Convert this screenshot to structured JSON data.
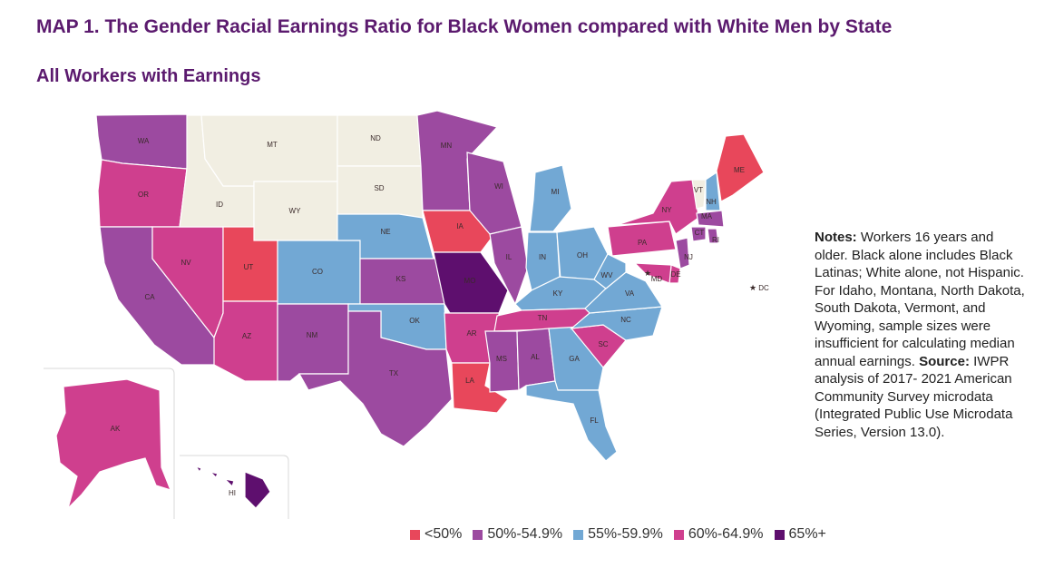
{
  "title": "MAP 1. The Gender Racial Earnings Ratio for Black Women compared with White Men by State",
  "subtitle": "All Workers with Earnings",
  "colors": {
    "lt50": "#e8475b",
    "r50_54": "#9c4aa0",
    "r55_59": "#72a8d4",
    "r60_64": "#cf3f8e",
    "r65plus": "#5e0f6e",
    "insufficient": "#f1eee2"
  },
  "legend": [
    {
      "key": "lt50",
      "label": "<50%"
    },
    {
      "key": "r50_54",
      "label": "50%-54.9%"
    },
    {
      "key": "r55_59",
      "label": "55%-59.9%"
    },
    {
      "key": "r60_64",
      "label": "60%-64.9%"
    },
    {
      "key": "r65plus",
      "label": "65%+"
    }
  ],
  "notes": {
    "notes_label": "Notes:",
    "notes_text": " Workers 16 years and older. Black alone includes Black Latinas; White alone, not Hispanic.  For Idaho, Montana, North Dakota, South Dakota, Vermont, and Wyoming, sample sizes were insufficient for calculating median annual earnings.",
    "source_label": "Source:",
    "source_text": " IWPR analysis of 2017- 2021 American Community Survey microdata (Integrated Public Use Microdata Series, Version 13.0)."
  },
  "states": [
    {
      "abbr": "WA",
      "cat": "r50_54"
    },
    {
      "abbr": "OR",
      "cat": "r60_64"
    },
    {
      "abbr": "CA",
      "cat": "r50_54"
    },
    {
      "abbr": "NV",
      "cat": "r60_64"
    },
    {
      "abbr": "ID",
      "cat": "insufficient"
    },
    {
      "abbr": "MT",
      "cat": "insufficient"
    },
    {
      "abbr": "WY",
      "cat": "insufficient"
    },
    {
      "abbr": "UT",
      "cat": "lt50"
    },
    {
      "abbr": "AZ",
      "cat": "r60_64"
    },
    {
      "abbr": "CO",
      "cat": "r55_59"
    },
    {
      "abbr": "NM",
      "cat": "r50_54"
    },
    {
      "abbr": "ND",
      "cat": "insufficient"
    },
    {
      "abbr": "SD",
      "cat": "insufficient"
    },
    {
      "abbr": "NE",
      "cat": "r55_59"
    },
    {
      "abbr": "KS",
      "cat": "r50_54"
    },
    {
      "abbr": "OK",
      "cat": "r55_59"
    },
    {
      "abbr": "TX",
      "cat": "r50_54"
    },
    {
      "abbr": "MN",
      "cat": "r50_54"
    },
    {
      "abbr": "IA",
      "cat": "lt50"
    },
    {
      "abbr": "MO",
      "cat": "r65plus"
    },
    {
      "abbr": "AR",
      "cat": "r60_64"
    },
    {
      "abbr": "LA",
      "cat": "lt50"
    },
    {
      "abbr": "WI",
      "cat": "r50_54"
    },
    {
      "abbr": "IL",
      "cat": "r50_54"
    },
    {
      "abbr": "MI",
      "cat": "r55_59"
    },
    {
      "abbr": "IN",
      "cat": "r55_59"
    },
    {
      "abbr": "OH",
      "cat": "r55_59"
    },
    {
      "abbr": "KY",
      "cat": "r55_59"
    },
    {
      "abbr": "TN",
      "cat": "r60_64"
    },
    {
      "abbr": "MS",
      "cat": "r50_54"
    },
    {
      "abbr": "AL",
      "cat": "r50_54"
    },
    {
      "abbr": "GA",
      "cat": "r55_59"
    },
    {
      "abbr": "FL",
      "cat": "r55_59"
    },
    {
      "abbr": "SC",
      "cat": "r60_64"
    },
    {
      "abbr": "NC",
      "cat": "r55_59"
    },
    {
      "abbr": "VA",
      "cat": "r55_59"
    },
    {
      "abbr": "WV",
      "cat": "r55_59"
    },
    {
      "abbr": "PA",
      "cat": "r60_64"
    },
    {
      "abbr": "NY",
      "cat": "r60_64"
    },
    {
      "abbr": "VT",
      "cat": "insufficient"
    },
    {
      "abbr": "NH",
      "cat": "r55_59"
    },
    {
      "abbr": "ME",
      "cat": "lt50"
    },
    {
      "abbr": "MA",
      "cat": "r50_54"
    },
    {
      "abbr": "CT",
      "cat": "r50_54"
    },
    {
      "abbr": "RI",
      "cat": "r50_54"
    },
    {
      "abbr": "NJ",
      "cat": "r50_54"
    },
    {
      "abbr": "DE",
      "cat": "r60_64"
    },
    {
      "abbr": "MD",
      "cat": "r60_64"
    },
    {
      "abbr": "AK",
      "cat": "r60_64"
    },
    {
      "abbr": "HI",
      "cat": "r65plus"
    },
    {
      "abbr": "DC",
      "cat": "r60_64"
    }
  ],
  "dc_label": "DC"
}
